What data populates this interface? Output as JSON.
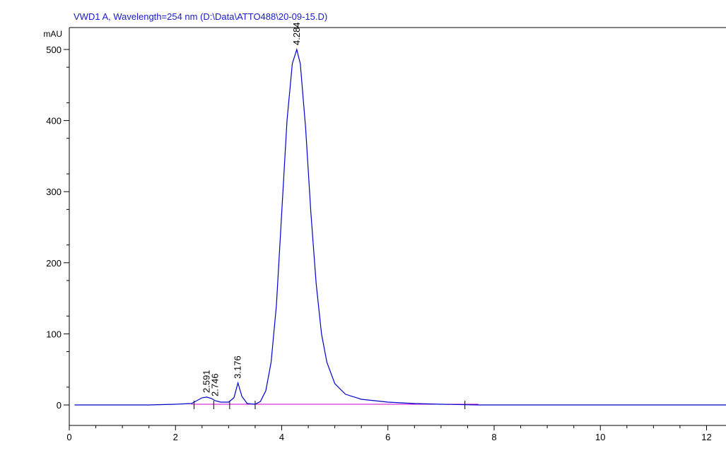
{
  "chart_data": {
    "type": "line",
    "title": "VWD1 A, Wavelength=254 nm (D:\\Data\\ATTO488\\20-09-15.D)",
    "ylabel": "mAU",
    "xlabel": "",
    "xlim": [
      0,
      12.4
    ],
    "ylim": [
      -25,
      535
    ],
    "x_ticks": [
      0,
      2,
      4,
      6,
      8,
      10,
      12
    ],
    "y_ticks": [
      0,
      100,
      200,
      300,
      400,
      500
    ],
    "grid": false,
    "colors": {
      "signal": "#0000cc",
      "baseline": "#cc00cc",
      "title": "#1a1acc",
      "frame": "#000000"
    },
    "series": [
      {
        "x": [
          0.1,
          1.5,
          2.0,
          2.3,
          2.4,
          2.5,
          2.591,
          2.68,
          2.746,
          2.85,
          3.0,
          3.1,
          3.176,
          3.25,
          3.35,
          3.5,
          3.6,
          3.7,
          3.8,
          3.9,
          4.0,
          4.1,
          4.2,
          4.284,
          4.35,
          4.45,
          4.55,
          4.65,
          4.75,
          4.85,
          5.0,
          5.2,
          5.5,
          6.0,
          6.5,
          7.0,
          7.7,
          9.0,
          12.4
        ],
        "y": [
          0,
          0,
          1,
          2,
          6,
          10,
          11,
          9,
          6,
          4,
          4,
          10,
          31,
          12,
          2,
          1,
          5,
          20,
          60,
          140,
          270,
          400,
          480,
          500,
          480,
          390,
          270,
          170,
          100,
          60,
          30,
          15,
          8,
          4,
          2,
          1,
          0,
          0,
          0
        ]
      }
    ],
    "baseline": {
      "x": [
        2.3,
        7.7
      ],
      "y": [
        1,
        1
      ]
    },
    "peaks": [
      {
        "rt": 2.591,
        "y": 11,
        "label": "2.591"
      },
      {
        "rt": 2.746,
        "y": 6,
        "label": "2.746"
      },
      {
        "rt": 3.176,
        "y": 31,
        "label": "3.176"
      },
      {
        "rt": 4.284,
        "y": 500,
        "label": "4.284"
      }
    ],
    "integration_markers": [
      2.35,
      2.72,
      3.02,
      3.5,
      7.45
    ]
  }
}
